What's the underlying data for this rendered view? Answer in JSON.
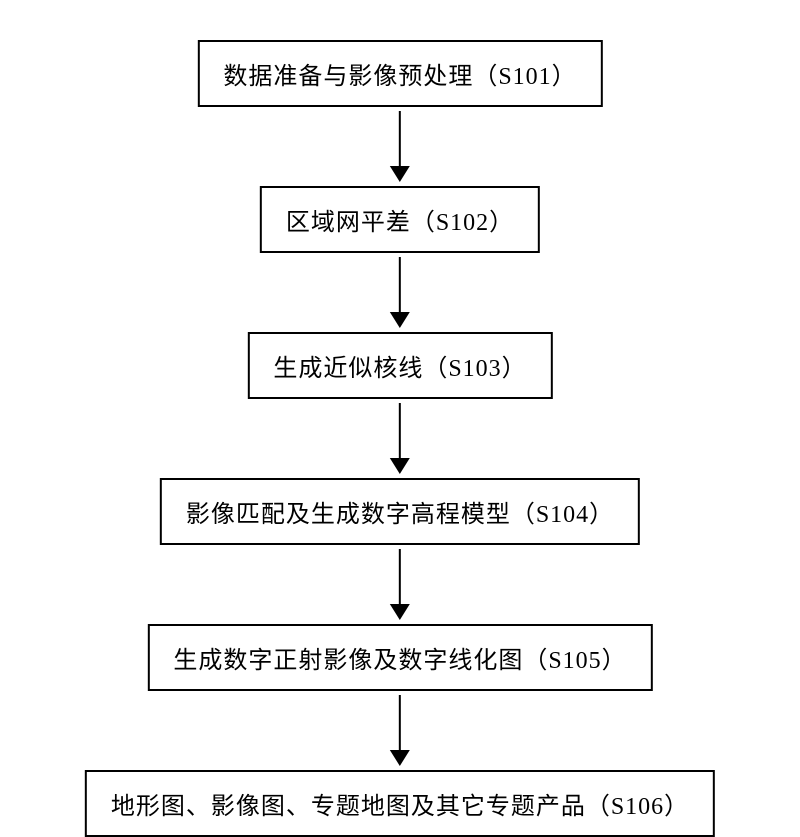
{
  "flowchart": {
    "type": "flowchart",
    "direction": "vertical",
    "background_color": "#ffffff",
    "node_border_color": "#000000",
    "node_border_width": 2,
    "node_bg_color": "#ffffff",
    "node_text_color": "#000000",
    "node_fontsize": 24,
    "node_padding_v": 14,
    "node_padding_h": 24,
    "arrow_color": "#000000",
    "arrow_shaft_width": 2,
    "arrow_head_width": 20,
    "arrow_head_height": 16,
    "nodes": [
      {
        "id": "s101",
        "label": "数据准备与影像预处理（S101）",
        "shaft_after": 55
      },
      {
        "id": "s102",
        "label": "区域网平差（S102）",
        "shaft_after": 55
      },
      {
        "id": "s103",
        "label": "生成近似核线（S103）",
        "shaft_after": 55
      },
      {
        "id": "s104",
        "label": "影像匹配及生成数字高程模型（S104）",
        "shaft_after": 55
      },
      {
        "id": "s105",
        "label": "生成数字正射影像及数字线化图（S105）",
        "shaft_after": 55
      },
      {
        "id": "s106",
        "label": "地形图、影像图、专题地图及其它专题产品（S106）",
        "shaft_after": null
      }
    ],
    "edges": [
      {
        "from": "s101",
        "to": "s102"
      },
      {
        "from": "s102",
        "to": "s103"
      },
      {
        "from": "s103",
        "to": "s104"
      },
      {
        "from": "s104",
        "to": "s105"
      },
      {
        "from": "s105",
        "to": "s106"
      }
    ]
  }
}
